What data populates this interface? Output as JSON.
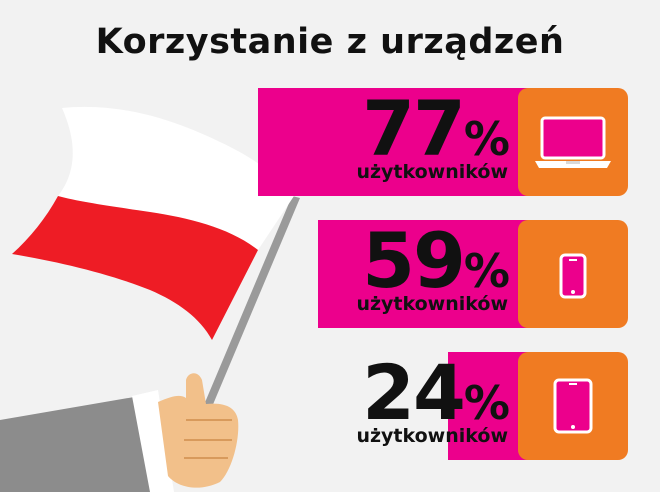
{
  "title": "Korzystanie z urządzeń",
  "colors": {
    "bar": "#ec008c",
    "tile": "#f07b22",
    "flag_red": "#ee1c25",
    "flag_white": "#ffffff"
  },
  "stats": [
    {
      "value": "77",
      "unit": "%",
      "label": "użytkowników",
      "icon": "laptop-icon"
    },
    {
      "value": "59",
      "unit": "%",
      "label": "użytkowników",
      "icon": "smartphone-icon"
    },
    {
      "value": "24",
      "unit": "%",
      "label": "użytkowników",
      "icon": "tablet-icon"
    }
  ]
}
